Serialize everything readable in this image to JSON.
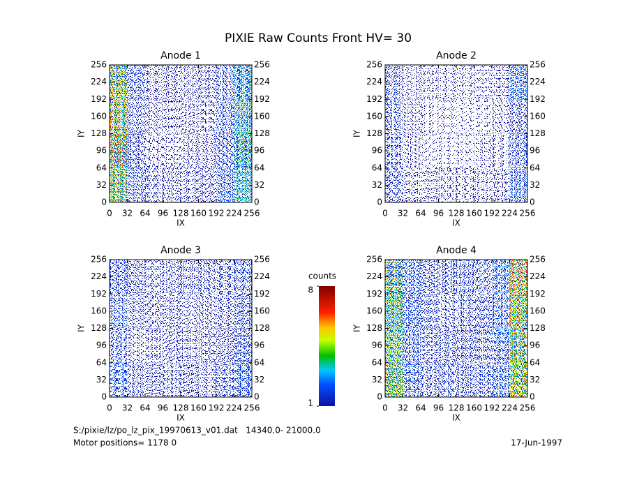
{
  "title": "PIXIE Raw Counts Front HV= 30",
  "chart_data": [
    {
      "type": "heatmap",
      "title": "Anode 1",
      "xlabel": "IX",
      "ylabel": "IY",
      "xlim": [
        0,
        256
      ],
      "ylim": [
        0,
        256
      ],
      "xticks": [
        0,
        32,
        64,
        96,
        128,
        160,
        192,
        224,
        256
      ],
      "yticks": [
        0,
        32,
        64,
        96,
        128,
        160,
        192,
        224,
        256
      ],
      "values": [
        [
          4.5,
          1.6,
          1.1,
          1.1,
          1.1,
          1.2,
          1.6,
          3.0
        ],
        [
          4.8,
          1.5,
          1.0,
          1.0,
          1.0,
          1.1,
          1.8,
          3.2
        ],
        [
          4.8,
          1.5,
          1.0,
          1.0,
          1.0,
          1.1,
          1.8,
          3.2
        ],
        [
          4.5,
          1.7,
          1.2,
          1.2,
          1.2,
          1.3,
          2.0,
          3.0
        ]
      ]
    },
    {
      "type": "heatmap",
      "title": "Anode 2",
      "xlabel": "IX",
      "ylabel": "IY",
      "xlim": [
        0,
        256
      ],
      "ylim": [
        0,
        256
      ],
      "xticks": [
        0,
        32,
        64,
        96,
        128,
        160,
        192,
        224,
        256
      ],
      "yticks": [
        0,
        32,
        64,
        96,
        128,
        160,
        192,
        224,
        256
      ],
      "values": [
        [
          1.6,
          1.0,
          0.8,
          0.8,
          0.8,
          0.8,
          1.0,
          2.2
        ],
        [
          1.5,
          0.9,
          0.6,
          0.6,
          0.6,
          0.7,
          0.9,
          1.6
        ],
        [
          1.5,
          0.9,
          0.6,
          0.6,
          0.6,
          0.7,
          0.9,
          1.6
        ],
        [
          1.6,
          1.0,
          0.9,
          0.9,
          0.9,
          0.9,
          1.1,
          2.0
        ]
      ]
    },
    {
      "type": "heatmap",
      "title": "Anode 3",
      "xlabel": "IX",
      "ylabel": "IY",
      "xlim": [
        0,
        256
      ],
      "ylim": [
        0,
        256
      ],
      "xticks": [
        0,
        32,
        64,
        96,
        128,
        160,
        192,
        224,
        256
      ],
      "yticks": [
        0,
        32,
        64,
        96,
        128,
        160,
        192,
        224,
        256
      ],
      "values": [
        [
          1.8,
          1.4,
          1.3,
          1.3,
          1.3,
          1.3,
          1.4,
          1.8
        ],
        [
          1.8,
          1.3,
          1.2,
          1.2,
          1.2,
          1.2,
          1.3,
          1.7
        ],
        [
          1.8,
          1.3,
          1.2,
          1.2,
          1.2,
          1.2,
          1.3,
          1.8
        ],
        [
          1.9,
          1.4,
          1.3,
          1.3,
          1.3,
          1.3,
          1.5,
          2.2
        ]
      ]
    },
    {
      "type": "heatmap",
      "title": "Anode 4",
      "xlabel": "IX",
      "ylabel": "IY",
      "xlim": [
        0,
        256
      ],
      "ylim": [
        0,
        256
      ],
      "xticks": [
        0,
        32,
        64,
        96,
        128,
        160,
        192,
        224,
        256
      ],
      "yticks": [
        0,
        32,
        64,
        96,
        128,
        160,
        192,
        224,
        256
      ],
      "values": [
        [
          4.2,
          2.0,
          1.6,
          1.6,
          1.6,
          1.6,
          2.2,
          4.8
        ],
        [
          4.0,
          1.9,
          1.5,
          1.5,
          1.5,
          1.5,
          2.1,
          4.6
        ],
        [
          4.0,
          1.9,
          1.5,
          1.5,
          1.5,
          1.5,
          2.1,
          4.6
        ],
        [
          4.2,
          2.0,
          1.6,
          1.6,
          1.6,
          1.6,
          2.2,
          4.8
        ]
      ]
    }
  ],
  "colorbar": {
    "label": "counts",
    "clim": [
      1,
      8
    ],
    "ticks": [
      1,
      8
    ]
  },
  "footer": {
    "file": "S:/pixie/lz/po_lz_pix_19970613_v01.dat   14340.0- 21000.0",
    "motor": "Motor positions= 1178 0",
    "date": "17-Jun-1997"
  }
}
